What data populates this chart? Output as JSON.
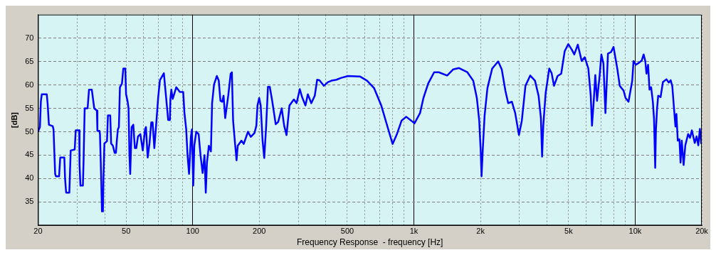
{
  "chart_data": {
    "type": "line",
    "xlabel": "Frequency Response  - frequency [Hz]",
    "ylabel": "[dB]",
    "log": "x",
    "grid": true,
    "legend": false,
    "marker": "none",
    "line_style": "solid",
    "xlim": [
      20,
      20000
    ],
    "ylim": [
      30,
      75
    ],
    "xticks": [
      20,
      {
        "value": 30,
        "label": null
      },
      {
        "value": 40,
        "label": null
      },
      50,
      {
        "value": 60,
        "label": null
      },
      {
        "value": 70,
        "label": null
      },
      {
        "value": 80,
        "label": null
      },
      {
        "value": 90,
        "label": null
      },
      100,
      200,
      {
        "value": 300,
        "label": null
      },
      {
        "value": 400,
        "label": null
      },
      500,
      {
        "value": 600,
        "label": null
      },
      {
        "value": 700,
        "label": null
      },
      {
        "value": 800,
        "label": null
      },
      {
        "value": 900,
        "label": null
      },
      {
        "value": 1000,
        "label": "1k"
      },
      {
        "value": 2000,
        "label": "2k"
      },
      {
        "value": 3000,
        "label": null
      },
      {
        "value": 4000,
        "label": null
      },
      {
        "value": 5000,
        "label": "5k"
      },
      {
        "value": 6000,
        "label": null
      },
      {
        "value": 7000,
        "label": null
      },
      {
        "value": 8000,
        "label": null
      },
      {
        "value": 9000,
        "label": null
      },
      {
        "value": 10000,
        "label": "10k"
      },
      {
        "value": 20000,
        "label": "20k"
      }
    ],
    "yticks": [
      35,
      40,
      45,
      50,
      55,
      60,
      65,
      70
    ],
    "x": [
      20,
      20.4,
      20.6,
      20.8,
      21.9,
      22.1,
      22.4,
      23.3,
      23.5,
      23.9,
      24.1,
      24.9,
      25.2,
      26.3,
      26.5,
      26.8,
      27.7,
      28.1,
      29.3,
      29.6,
      30.7,
      30.8,
      31.1,
      31.9,
      32.1,
      32.5,
      33.5,
      34,
      35,
      35.9,
      36.9,
      37.1,
      37.9,
      38.1,
      38.6,
      38.9,
      39.3,
      39.5,
      39.9,
      41,
      41.4,
      42.4,
      42.8,
      43.6,
      44.4,
      45,
      45.4,
      45.9,
      46.4,
      46.9,
      47.9,
      48.6,
      49.6,
      50,
      50.8,
      51.3,
      51.8,
      52.2,
      53,
      53.9,
      54.8,
      55.6,
      56.6,
      58,
      59.5,
      60.9,
      61.5,
      62.6,
      63.8,
      65,
      65.9,
      67.1,
      68.5,
      69.9,
      71.1,
      74.1,
      75.6,
      77.5,
      78.9,
      79.3,
      80.1,
      81.2,
      84.3,
      87.5,
      90.6,
      91.8,
      93.5,
      94.8,
      96.3,
      98.2,
      99.2,
      100.6,
      101.7,
      103.8,
      106.4,
      108.5,
      110.9,
      113.1,
      114.6,
      116,
      118.3,
      120.9,
      122.4,
      124.9,
      128.6,
      131.2,
      133.5,
      136,
      137.9,
      140.3,
      144.8,
      148.5,
      150.4,
      152.3,
      155,
      157.9,
      159.8,
      166.1,
      170.1,
      177.8,
      183.1,
      190.2,
      194,
      196.3,
      199.8,
      203,
      207,
      210.6,
      214.9,
      218.9,
      223.1,
      228.8,
      237.3,
      243.5,
      252.6,
      259.1,
      265.6,
      273.8,
      286.7,
      294.9,
      305,
      311.7,
      323.4,
      331.5,
      343.7,
      356.3,
      365.3,
      374.3,
      391.6,
      408.8,
      424.1,
      446.4,
      469,
      504,
      570,
      614,
      661,
      712,
      768,
      801,
      835,
      880,
      923,
      971,
      1006,
      1066,
      1104,
      1160,
      1234,
      1296,
      1413,
      1503,
      1599,
      1744,
      1854,
      1925,
      1973,
      2003,
      2022,
      2047,
      2087,
      2149,
      2258,
      2403,
      2495,
      2590,
      2667,
      2773,
      2869,
      2984,
      3075,
      3192,
      3356,
      3526,
      3659,
      3750,
      3796,
      3843,
      3940,
      4090,
      4192,
      4298,
      4460,
      4632,
      4803,
      4987,
      5176,
      5306,
      5504,
      5732,
      5916,
      6142,
      6298,
      6380,
      6499,
      6604,
      6726,
      6906,
      7035,
      7186,
      7339,
      7535,
      7777,
      7986,
      8300,
      8520,
      8860,
      9050,
      9330,
      9700,
      9830,
      10070,
      10450,
      10710,
      10920,
      11110,
      11250,
      11440,
      11610,
      11810,
      12020,
      12170,
      12320,
      12410,
      12560,
      12710,
      13030,
      13350,
      13850,
      14190,
      14470,
      14720,
      14980,
      15210,
      15360,
      15580,
      15850,
      16040,
      16240,
      16560,
      16850,
      17350,
      17700,
      18040,
      18590,
      18950,
      19290,
      19610,
      19900
    ],
    "series": [
      {
        "color": "#0000ff",
        "values": [
          50,
          51,
          56.5,
          58,
          58,
          56,
          51.5,
          51.2,
          50.5,
          41,
          40.5,
          40.5,
          44.5,
          44.5,
          40,
          37,
          37,
          46,
          46.2,
          50.3,
          50.3,
          43,
          38.5,
          38.5,
          43,
          55,
          55,
          59,
          59,
          55,
          54.5,
          50.2,
          50.2,
          49.5,
          40,
          33,
          33,
          40,
          47.5,
          48,
          53.5,
          53.5,
          47.5,
          47,
          45.5,
          45.5,
          48,
          50.5,
          51,
          59.5,
          60.3,
          63.5,
          63.5,
          58,
          56.5,
          55,
          45,
          41,
          51,
          51.5,
          46.5,
          46.5,
          49,
          49.5,
          46,
          50.5,
          51,
          44.5,
          47.5,
          52,
          52,
          46.5,
          52,
          57.5,
          61,
          62.5,
          58,
          52.5,
          52.5,
          57,
          59,
          57,
          59.5,
          58.5,
          58.5,
          54,
          50.5,
          45,
          41,
          49,
          50.5,
          38.5,
          47,
          50,
          49.5,
          45,
          41.2,
          45,
          37,
          43.4,
          47,
          45.8,
          56.1,
          60.1,
          61.9,
          60.9,
          56.6,
          56.4,
          57.7,
          52.9,
          57.7,
          62.4,
          62.7,
          52.4,
          48.1,
          43.9,
          47,
          48.1,
          47.4,
          50,
          48.9,
          49.7,
          51.3,
          55.6,
          57.2,
          55.6,
          48.1,
          44.4,
          51.3,
          59.6,
          59.6,
          56.6,
          51.6,
          52.1,
          55,
          51.3,
          49.3,
          55.6,
          56.9,
          56.1,
          59.1,
          57.5,
          55.6,
          58,
          56.1,
          57.7,
          61.1,
          61,
          59.8,
          60.6,
          60.9,
          61.1,
          61.5,
          61.9,
          61.8,
          60.9,
          59.3,
          55.6,
          50.3,
          47.4,
          49.3,
          52.4,
          53.2,
          52.4,
          51.8,
          54,
          57.2,
          60.3,
          62.7,
          62.7,
          62,
          63.3,
          63.6,
          62.7,
          60.9,
          57.2,
          52.4,
          46.1,
          40.5,
          46.1,
          53.5,
          59.3,
          63.5,
          65,
          63.3,
          58.8,
          56.1,
          56.4,
          54,
          49.3,
          52.4,
          59.8,
          62,
          60.9,
          57.7,
          52.9,
          44.7,
          51.3,
          58.3,
          63.5,
          62.5,
          59.8,
          61.9,
          62.4,
          67.2,
          68.7,
          67.5,
          66.5,
          68.6,
          65.1,
          65.9,
          63.5,
          57.7,
          51.3,
          56.6,
          62.1,
          56.6,
          61.9,
          66.5,
          64.6,
          54,
          66.7,
          67,
          68.1,
          63.5,
          59.8,
          58.8,
          57.2,
          56.4,
          60.9,
          65.1,
          64.3,
          64.8,
          65.2,
          66.5,
          65.1,
          62.4,
          64.3,
          59,
          59.5,
          56.4,
          52.7,
          42.3,
          50.3,
          55,
          57.7,
          57.4,
          60.6,
          61.2,
          60.5,
          61,
          59.7,
          55,
          51.1,
          53.8,
          48.1,
          48.4,
          43.4,
          48.1,
          42.9,
          47.1,
          49.5,
          48.7,
          50.3,
          47.6,
          49,
          47.1,
          50.6,
          47.4
        ]
      }
    ]
  }
}
